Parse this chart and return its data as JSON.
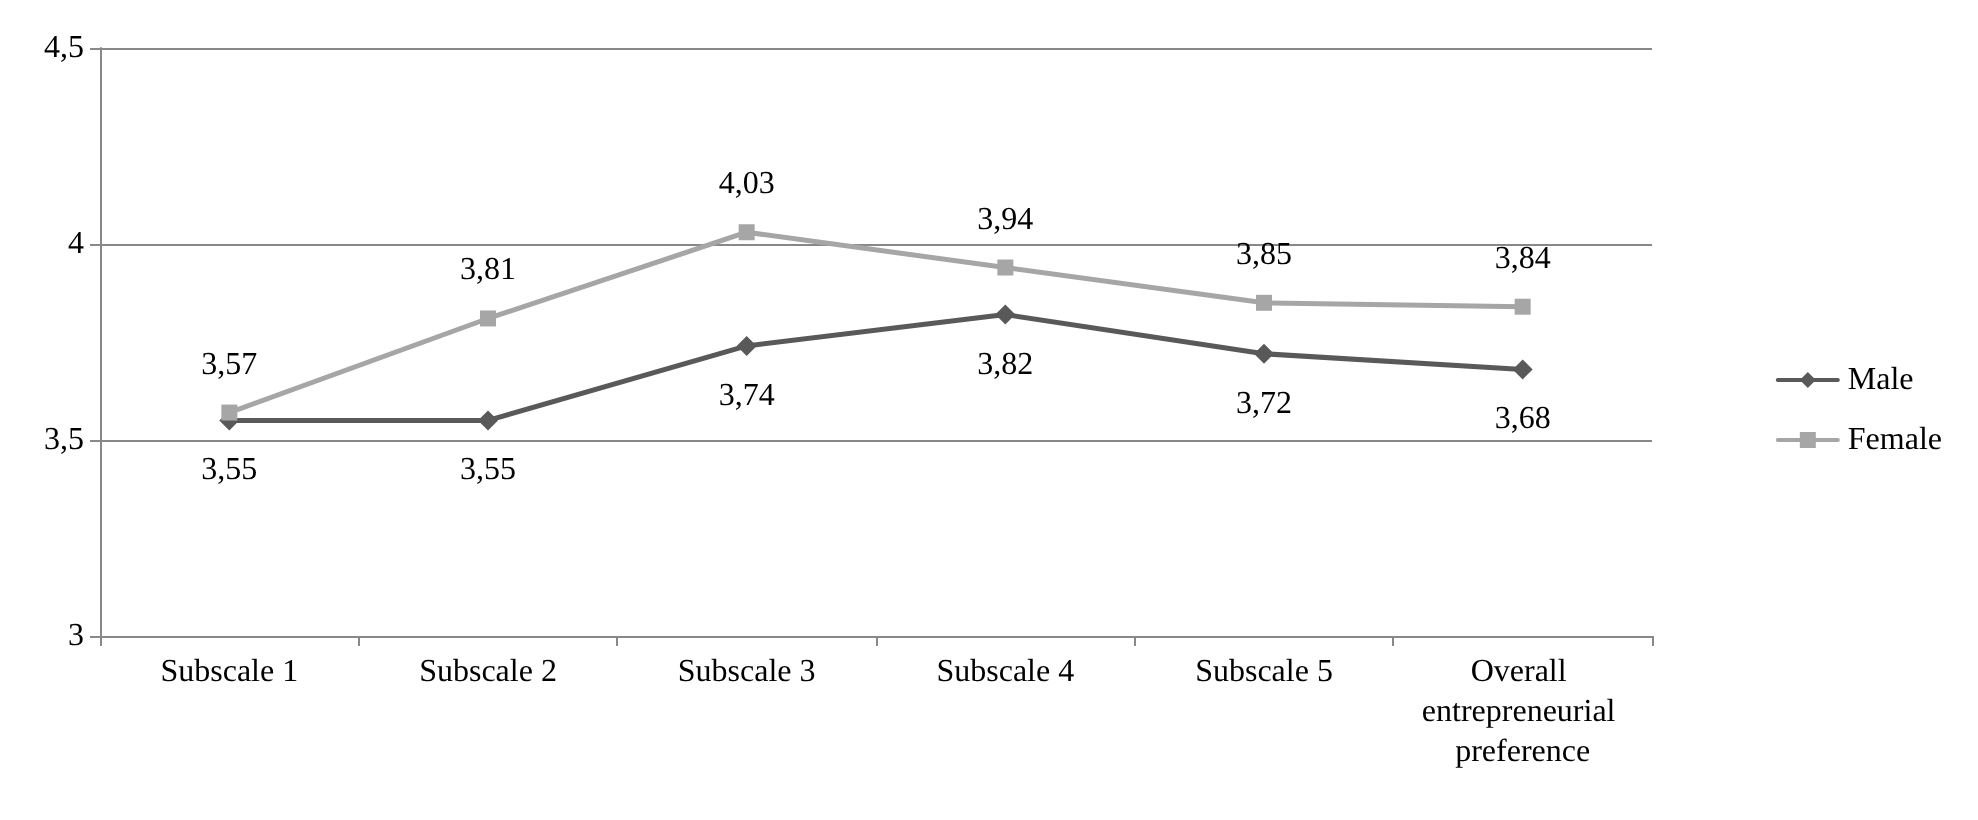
{
  "chart_data": {
    "type": "line",
    "categories": [
      "Subscale 1",
      "Subscale 2",
      "Subscale 3",
      "Subscale 4",
      "Subscale 5",
      "Overall entrepreneurial preference"
    ],
    "series": [
      {
        "name": "Male",
        "color": "#595959",
        "marker": "diamond",
        "values": [
          3.55,
          3.55,
          3.74,
          3.82,
          3.72,
          3.68
        ],
        "value_labels": [
          "3,55",
          "3,55",
          "3,74",
          "3,82",
          "3,72",
          "3,68"
        ]
      },
      {
        "name": "Female",
        "color": "#a6a6a6",
        "marker": "square",
        "values": [
          3.57,
          3.81,
          4.03,
          3.94,
          3.85,
          3.84
        ],
        "value_labels": [
          "3,57",
          "3,81",
          "4,03",
          "3,94",
          "3,85",
          "3,84"
        ]
      }
    ],
    "ylim": [
      3,
      4.5
    ],
    "yticks": [
      3,
      {
        "value": 3.5,
        "label": "3,5"
      },
      4,
      {
        "value": 4.5,
        "label": "4,5"
      }
    ],
    "grid": "y",
    "legend": "right"
  }
}
